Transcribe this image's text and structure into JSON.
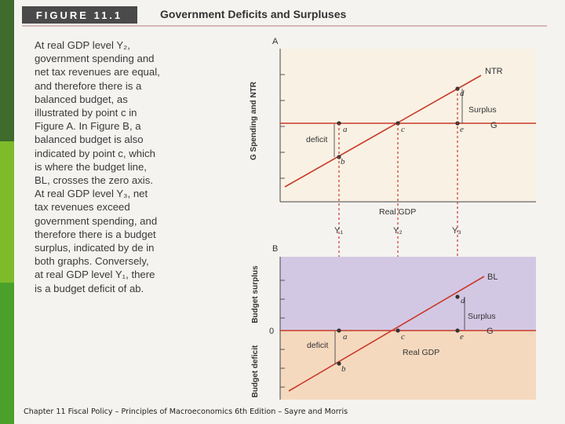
{
  "figure": {
    "number": "FIGURE 11.1",
    "title": "Government Deficits and Surpluses",
    "description": "At real GDP level Y₂, government spending and net tax revenues are equal, and therefore there is a balanced budget, as illustrated by point c in Figure A. In Figure B, a balanced budget is also indicated by point c, which is where the budget line, BL, crosses the zero axis. At real GDP level Y₃, net tax revenues exceed government spending, and therefore there is a budget surplus, indicated by de in both graphs. Conversely, at real GDP level Y₁, there is a budget deficit of ab."
  },
  "panel_a": {
    "label": "A",
    "y_axis_label": "G Spending and NTR",
    "x_axis_label": "Real GDP",
    "line_ntr": "NTR",
    "line_g": "G",
    "points": [
      "a",
      "b",
      "c",
      "d",
      "e"
    ],
    "surplus_label": "Surplus",
    "deficit_label": "deficit"
  },
  "levels": [
    "Y₁",
    "Y₂",
    "Y₃"
  ],
  "panel_b": {
    "label": "B",
    "surplus_axis_label": "Budget surplus",
    "deficit_axis_label": "Budget deficit",
    "zero_label": "0",
    "line_bl": "BL",
    "line_g": "G",
    "x_axis_label": "Real GDP",
    "points": [
      "a",
      "b",
      "c",
      "d",
      "e"
    ],
    "surplus_label": "Surplus",
    "deficit_label": "deficit"
  },
  "colors": {
    "figure_banner": "#4a4a4a",
    "line": "#c83a28",
    "surplus_region": "#d3c8e4",
    "deficit_region": "#f5d9bf",
    "panel_a_bg": "#f9f1e4",
    "stripe_dark": "#3f6b2d",
    "stripe_mid": "#7dbb2a",
    "stripe_light": "#4aa02a"
  },
  "footer": "Chapter 11 Fiscal Policy – Principles of Macroeconomics 6th Edition – Sayre and Morris"
}
